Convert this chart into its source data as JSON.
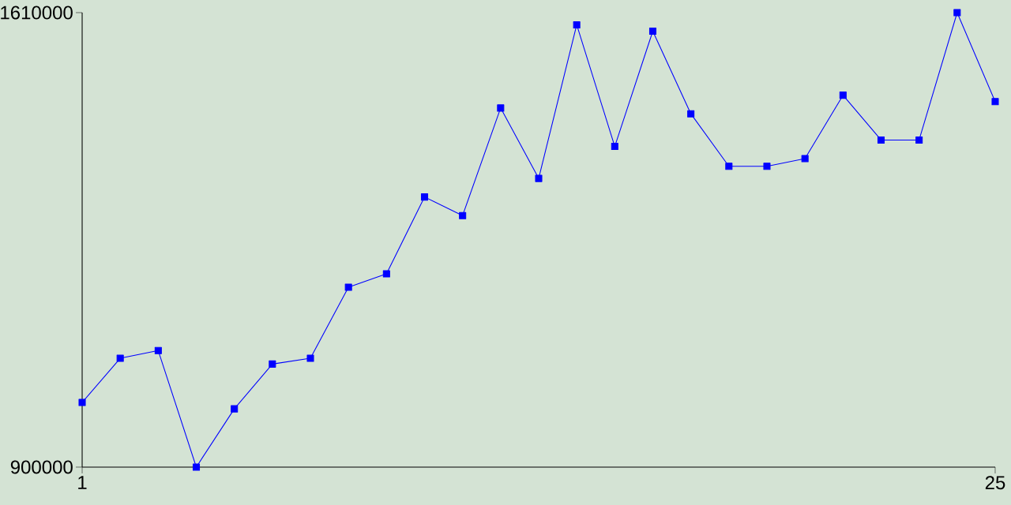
{
  "chart_data": {
    "type": "line",
    "x": [
      1,
      2,
      3,
      4,
      5,
      6,
      7,
      8,
      9,
      10,
      11,
      12,
      13,
      14,
      15,
      16,
      17,
      18,
      19,
      20,
      21,
      22,
      23,
      24,
      25
    ],
    "values": [
      1001000,
      1070000,
      1082000,
      900000,
      991000,
      1061000,
      1070000,
      1181000,
      1202000,
      1322000,
      1293000,
      1461000,
      1351000,
      1591000,
      1401000,
      1581000,
      1452000,
      1370000,
      1370000,
      1382000,
      1481000,
      1411000,
      1411000,
      1610000,
      1471000
    ],
    "color": "#0000ff",
    "marker": "square",
    "xlim": [
      1,
      25
    ],
    "ylim": [
      900000,
      1610000
    ],
    "xticks": [
      1,
      25
    ],
    "yticks": [
      900000,
      1610000
    ]
  }
}
